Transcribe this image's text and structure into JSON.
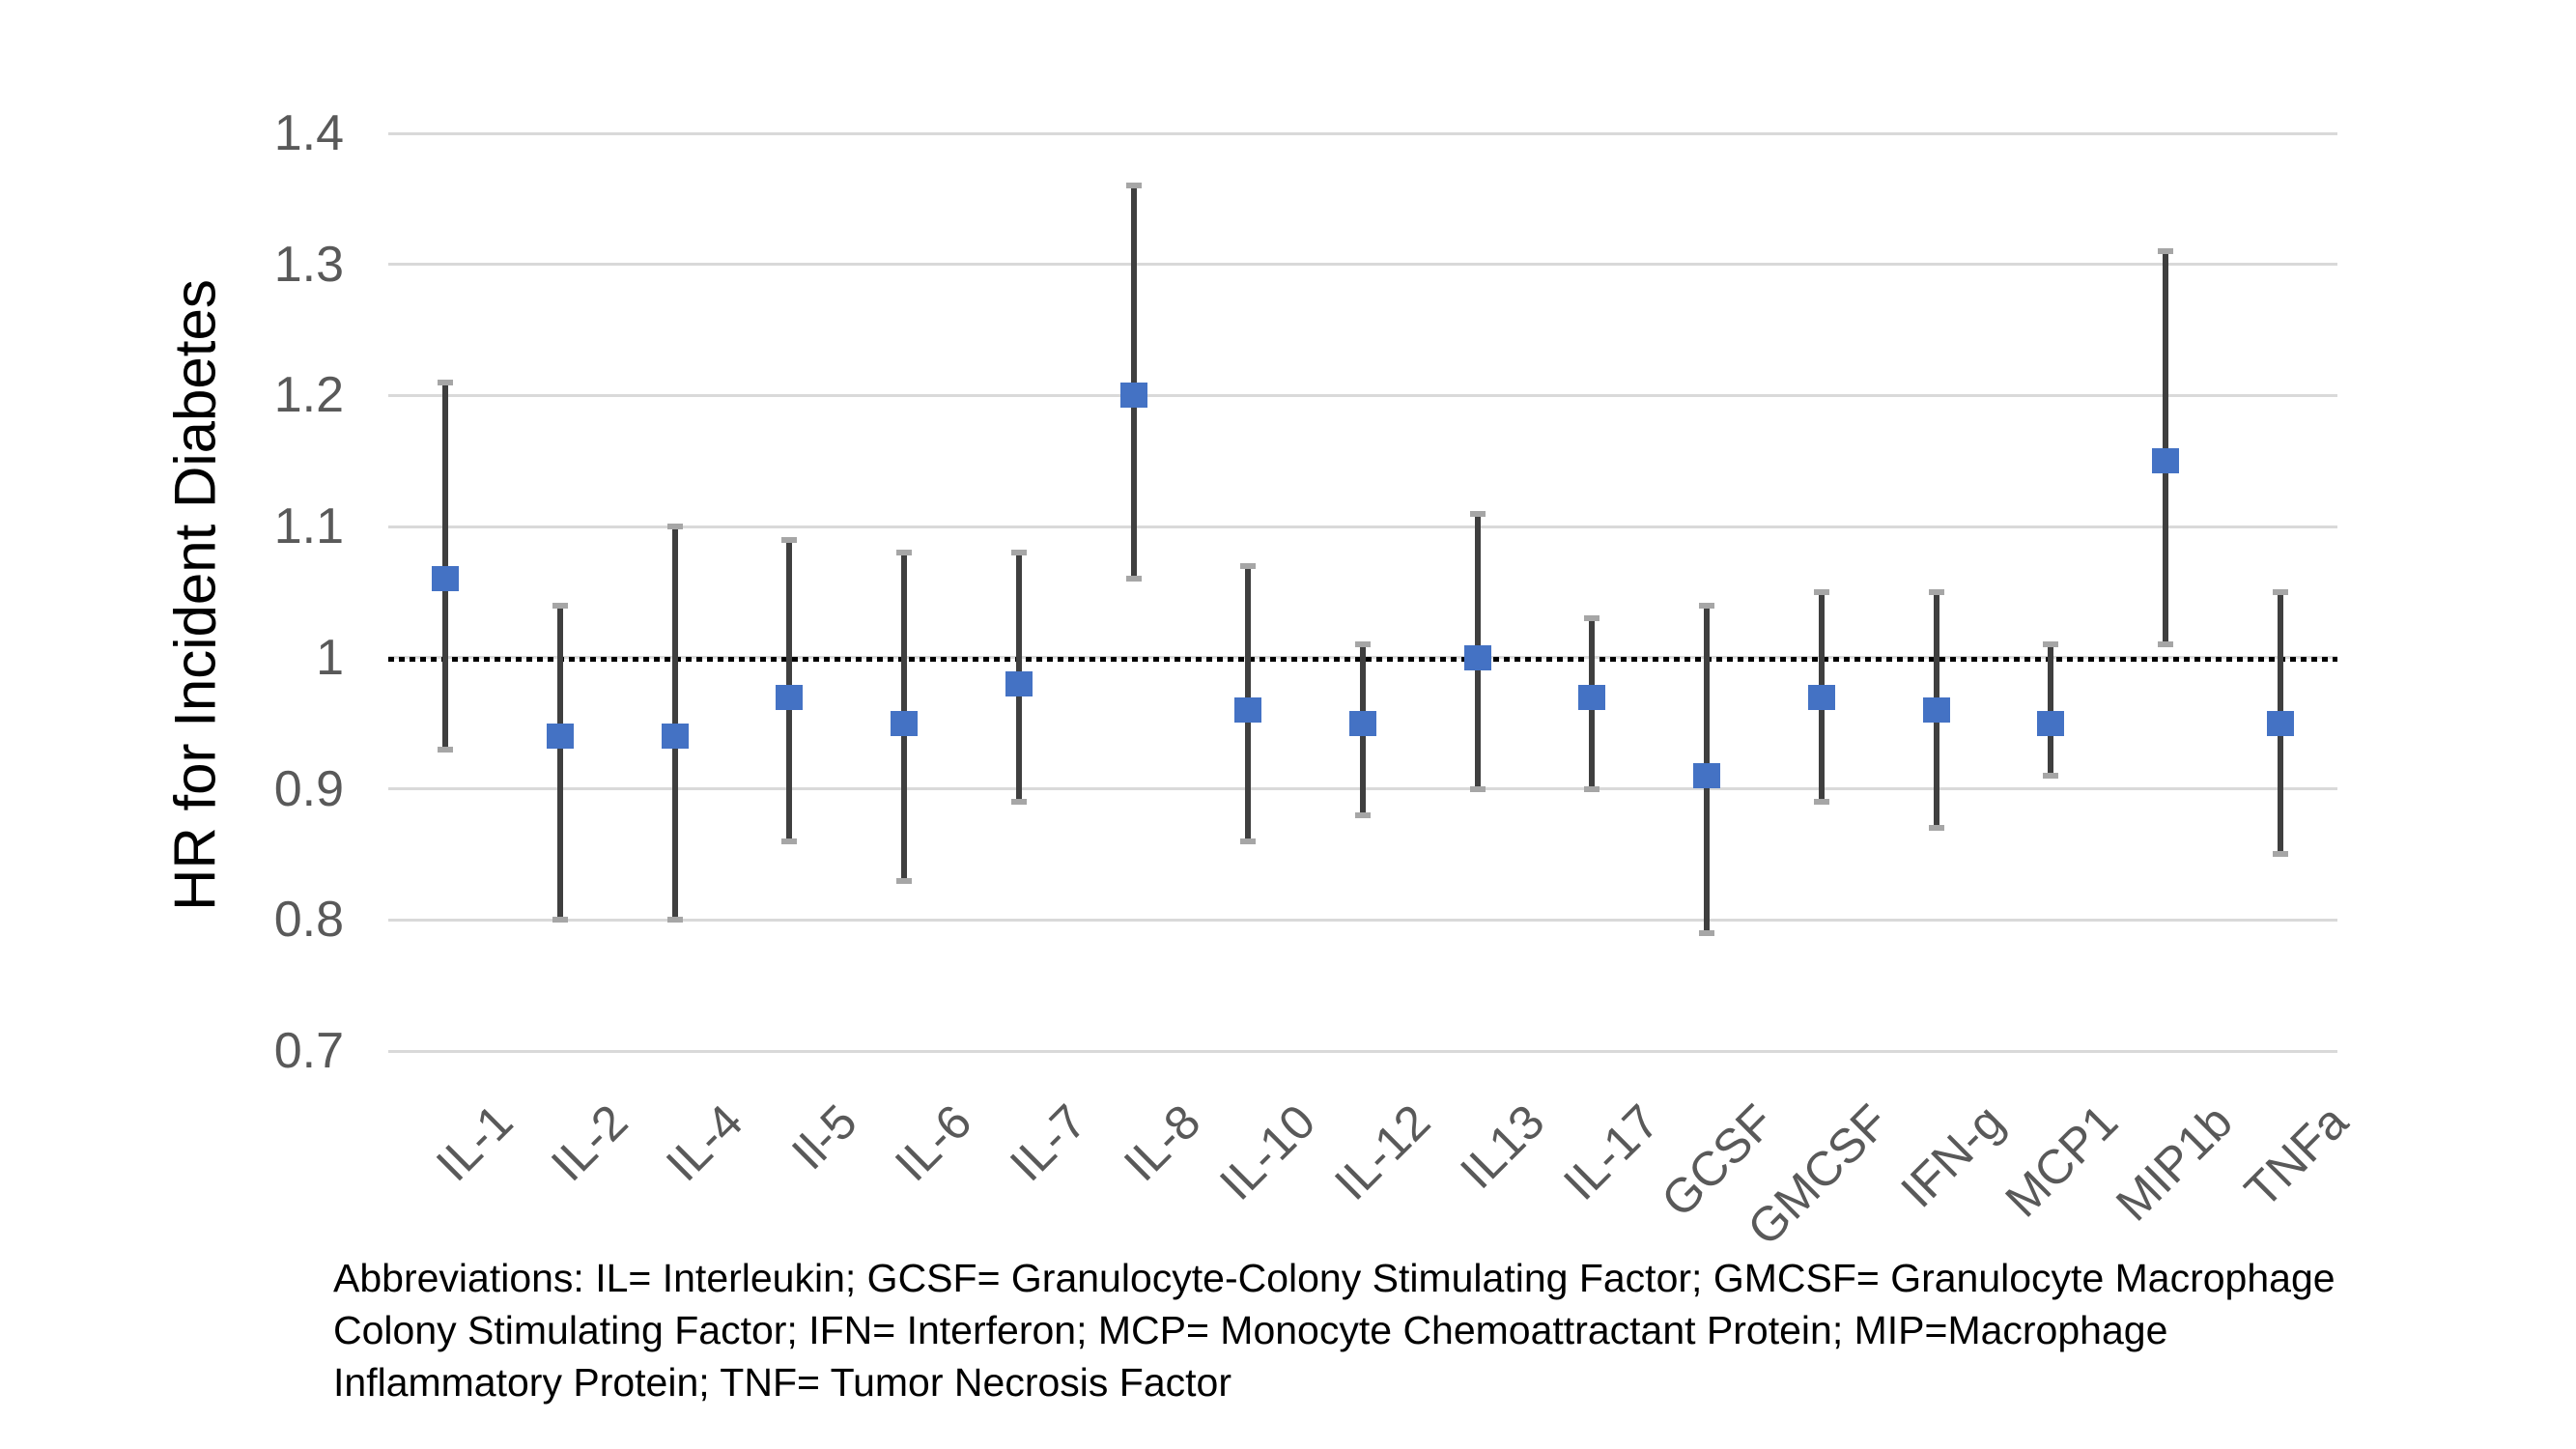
{
  "figure": {
    "caption": {
      "line1": "Abbreviations: IL= Interleukin; GCSF= Granulocyte-Colony Stimulating Factor; GMCSF= Granulocyte Macrophage",
      "line2": "Colony Stimulating Factor; IFN= Interferon; MCP= Monocyte Chemoattractant Protein; MIP=Macrophage",
      "line3": "Inflammatory Protein; TNF= Tumor Necrosis Factor"
    }
  },
  "chart_data": {
    "type": "scatter",
    "title": "",
    "xlabel": "",
    "ylabel": "HR for Incident Diabetes",
    "ylim": [
      0.7,
      1.4
    ],
    "yticks": [
      1.4,
      1.3,
      1.2,
      1.1,
      1,
      0.9,
      0.8,
      0.7
    ],
    "grid": true,
    "legend": false,
    "reference_line_y": 1.0,
    "reference_line_style": "dotted",
    "marker": "square",
    "error_bars": "95% CI",
    "categories": [
      "IL-1",
      "IL-2",
      "IL-4",
      "Il-5",
      "IL-6",
      "IL-7",
      "IL-8",
      "IL-10",
      "IL-12",
      "IL13",
      "IL-17",
      "GCSF",
      "GMCSF",
      "IFN-g",
      "MCP1",
      "MIP1b",
      "TNFa"
    ],
    "points": [
      {
        "label": "IL-1",
        "hr": 1.06,
        "ci_low": 0.93,
        "ci_high": 1.21
      },
      {
        "label": "IL-2",
        "hr": 0.94,
        "ci_low": 0.8,
        "ci_high": 1.04
      },
      {
        "label": "IL-4",
        "hr": 0.94,
        "ci_low": 0.8,
        "ci_high": 1.1
      },
      {
        "label": "Il-5",
        "hr": 0.97,
        "ci_low": 0.86,
        "ci_high": 1.09
      },
      {
        "label": "IL-6",
        "hr": 0.95,
        "ci_low": 0.83,
        "ci_high": 1.08
      },
      {
        "label": "IL-7",
        "hr": 0.98,
        "ci_low": 0.89,
        "ci_high": 1.08
      },
      {
        "label": "IL-8",
        "hr": 1.2,
        "ci_low": 1.06,
        "ci_high": 1.36
      },
      {
        "label": "IL-10",
        "hr": 0.96,
        "ci_low": 0.86,
        "ci_high": 1.07
      },
      {
        "label": "IL-12",
        "hr": 0.95,
        "ci_low": 0.88,
        "ci_high": 1.01
      },
      {
        "label": "IL13",
        "hr": 1.0,
        "ci_low": 0.9,
        "ci_high": 1.11
      },
      {
        "label": "IL-17",
        "hr": 0.97,
        "ci_low": 0.9,
        "ci_high": 1.03
      },
      {
        "label": "GCSF",
        "hr": 0.91,
        "ci_low": 0.79,
        "ci_high": 1.04
      },
      {
        "label": "GMCSF",
        "hr": 0.97,
        "ci_low": 0.89,
        "ci_high": 1.05
      },
      {
        "label": "IFN-g",
        "hr": 0.96,
        "ci_low": 0.87,
        "ci_high": 1.05
      },
      {
        "label": "MCP1",
        "hr": 0.95,
        "ci_low": 0.91,
        "ci_high": 1.01
      },
      {
        "label": "MIP1b",
        "hr": 1.15,
        "ci_low": 1.01,
        "ci_high": 1.31
      },
      {
        "label": "TNFa",
        "hr": 0.95,
        "ci_low": 0.85,
        "ci_high": 1.05
      }
    ],
    "colors": {
      "marker": "#4472C4",
      "error_bar": "#3F3F3F",
      "error_cap": "#A6A6A6",
      "gridline": "#D9D9D9",
      "reference_line": "#000000",
      "tick_text": "#595959",
      "axis_title_text": "#000000",
      "caption_text": "#000000",
      "background": "#FFFFFF"
    }
  }
}
